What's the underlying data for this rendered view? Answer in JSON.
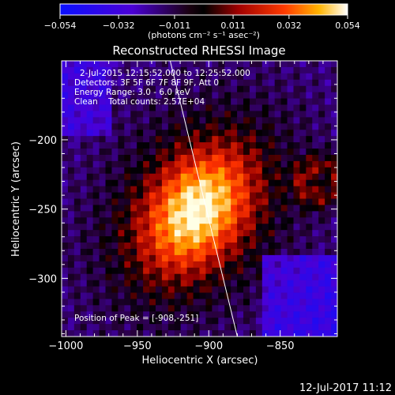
{
  "chart_data": {
    "type": "heatmap",
    "title": "Reconstructed RHESSI Image",
    "xlabel": "Heliocentric X (arcsec)",
    "ylabel": "Heliocentric Y (arcsec)",
    "xlim": [
      -1003,
      -810
    ],
    "ylim": [
      -342,
      -143
    ],
    "xticks": [
      -1000,
      -950,
      -900,
      -850
    ],
    "xtick_labels": [
      "−1000",
      "−950",
      "−900",
      "−850"
    ],
    "yticks": [
      -200,
      -250,
      -300
    ],
    "ytick_labels": [
      "−200",
      "−250",
      "−300"
    ],
    "colorbar": {
      "range": [
        -0.054,
        0.054
      ],
      "ticks": [
        -0.054,
        -0.032,
        -0.011,
        0.011,
        0.032,
        0.054
      ],
      "tick_labels": [
        "−0.054",
        "−0.032",
        "−0.011",
        "0.011",
        "0.032",
        "0.054"
      ],
      "units_label": "(photons cm⁻² s⁻¹ asec⁻²)"
    },
    "peak": {
      "x": -908,
      "y": -251
    },
    "limb_line": {
      "x1": -927,
      "y1": -143,
      "x2": -880,
      "y2": -342
    },
    "annotations": [
      "2-Jul-2015 12:15:52.000 to 12:25:52.000",
      "Detectors: 3F 5F 6F 7F 8F 9F, Att 0",
      "Energy Range: 3.0 - 6.0 keV",
      "Clean    Total counts: 2.57E+04"
    ],
    "peak_label": "Position of Peak = [-908,-251]"
  },
  "footer": {
    "timestamp": "12-Jul-2017 11:12"
  }
}
